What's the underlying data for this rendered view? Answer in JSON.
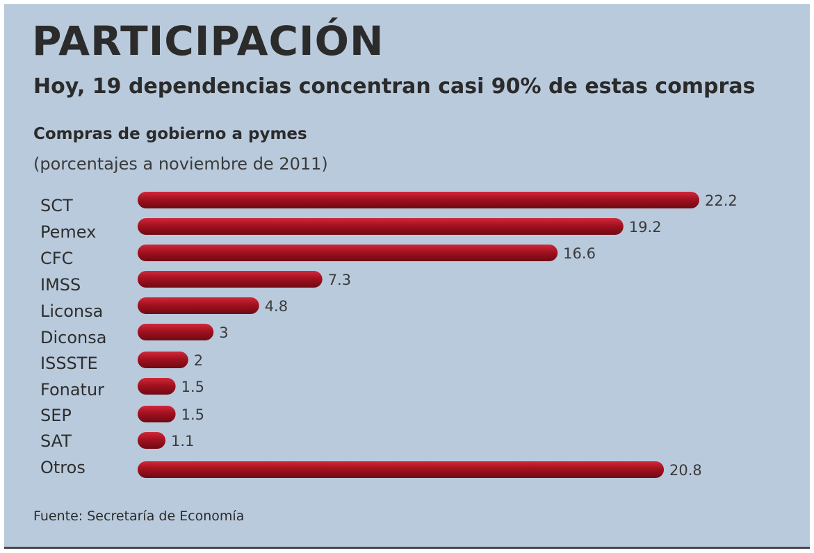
{
  "header": {
    "title": "PARTICIPACIÓN",
    "subtitle": "Hoy, 19 dependencias concentran casi 90% de estas compras"
  },
  "chart_data": {
    "type": "bar",
    "orientation": "horizontal",
    "title": "Compras de gobierno a pymes",
    "subtitle": "(porcentajes a noviembre de 2011)",
    "categories": [
      "SCT",
      "Pemex",
      "CFC",
      "IMSS",
      "Liconsa",
      "Diconsa",
      "ISSSTE",
      "Fonatur",
      "SEP",
      "SAT",
      "Otros"
    ],
    "values": [
      22.2,
      19.2,
      16.6,
      7.3,
      4.8,
      3,
      2,
      1.5,
      1.5,
      1.1,
      20.8
    ],
    "value_labels": [
      "22.2",
      "19.2",
      "16.6",
      "7.3",
      "4.8",
      "3",
      "2",
      "1.5",
      "1.5",
      "1.1",
      "20.8"
    ],
    "xlim": [
      0,
      22.2
    ],
    "bar_color": "#a3111f",
    "grid": false,
    "legend": "none"
  },
  "footer": {
    "source": "Fuente: Secretaría de Economía"
  },
  "colors": {
    "background": "#b9cadc",
    "text": "#2b2b2b",
    "bar": "#a3111f"
  }
}
